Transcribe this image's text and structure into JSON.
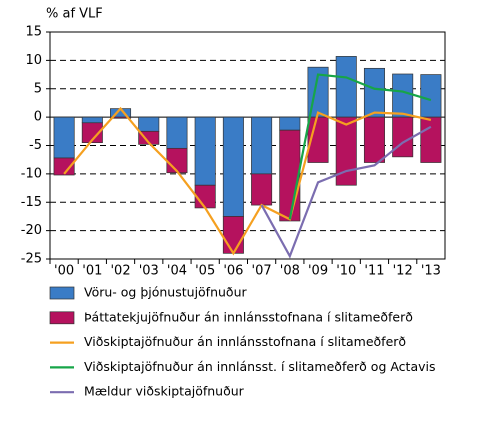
{
  "chart_data": {
    "type": "bar",
    "y_label": "% af VLF",
    "categories": [
      "'00",
      "'01",
      "'02",
      "'03",
      "'04",
      "'05",
      "'06",
      "'07",
      "'08",
      "'09",
      "'10",
      "'11",
      "'12",
      "'13"
    ],
    "ylim": [
      -25,
      15
    ],
    "yticks": [
      15,
      10,
      5,
      0,
      -5,
      -10,
      -15,
      -20,
      -25
    ],
    "grid": true,
    "series": [
      {
        "name": "Vöru- og þjónustujöfnuður",
        "kind": "bar",
        "color": "#3a7cc6",
        "values": [
          -7.2,
          -1,
          1.5,
          -2.5,
          -5.5,
          -12,
          -17.5,
          -10,
          -2.3,
          8.8,
          10.7,
          8.6,
          7.6,
          7.5
        ]
      },
      {
        "name": "Þáttatekjujöfnuður án innlánsstofnana í slitameðferð",
        "kind": "bar",
        "color": "#b5125e",
        "values": [
          -3,
          -3.5,
          -0.2,
          -2.3,
          -4.3,
          -4,
          -6.5,
          -5.5,
          -16,
          -8,
          -12,
          -8,
          -7,
          -8
        ]
      },
      {
        "name": "Viðskiptajöfnuður án innlánsstofnana í slitameðferð",
        "kind": "line",
        "color": "#f5a020",
        "values": [
          -10,
          -4,
          1.5,
          -4.5,
          -9.5,
          -16,
          -24,
          -15.5,
          -18,
          0.8,
          -1.3,
          0.8,
          0.6,
          -0.5
        ]
      },
      {
        "name": "Viðskiptajöfnuður án innlánsst. í slitameðferð og Actavis",
        "kind": "line",
        "color": "#17a548",
        "values": [
          null,
          null,
          null,
          null,
          null,
          null,
          null,
          null,
          -18,
          7.5,
          7,
          5,
          4.5,
          3
        ]
      },
      {
        "name": "Mældur viðskiptajöfnuður",
        "kind": "line",
        "color": "#7b6db0",
        "values": [
          null,
          null,
          null,
          null,
          null,
          null,
          null,
          -15.5,
          -24.5,
          -11.5,
          -9.5,
          -8.5,
          -4.5,
          -1.7
        ]
      }
    ]
  }
}
